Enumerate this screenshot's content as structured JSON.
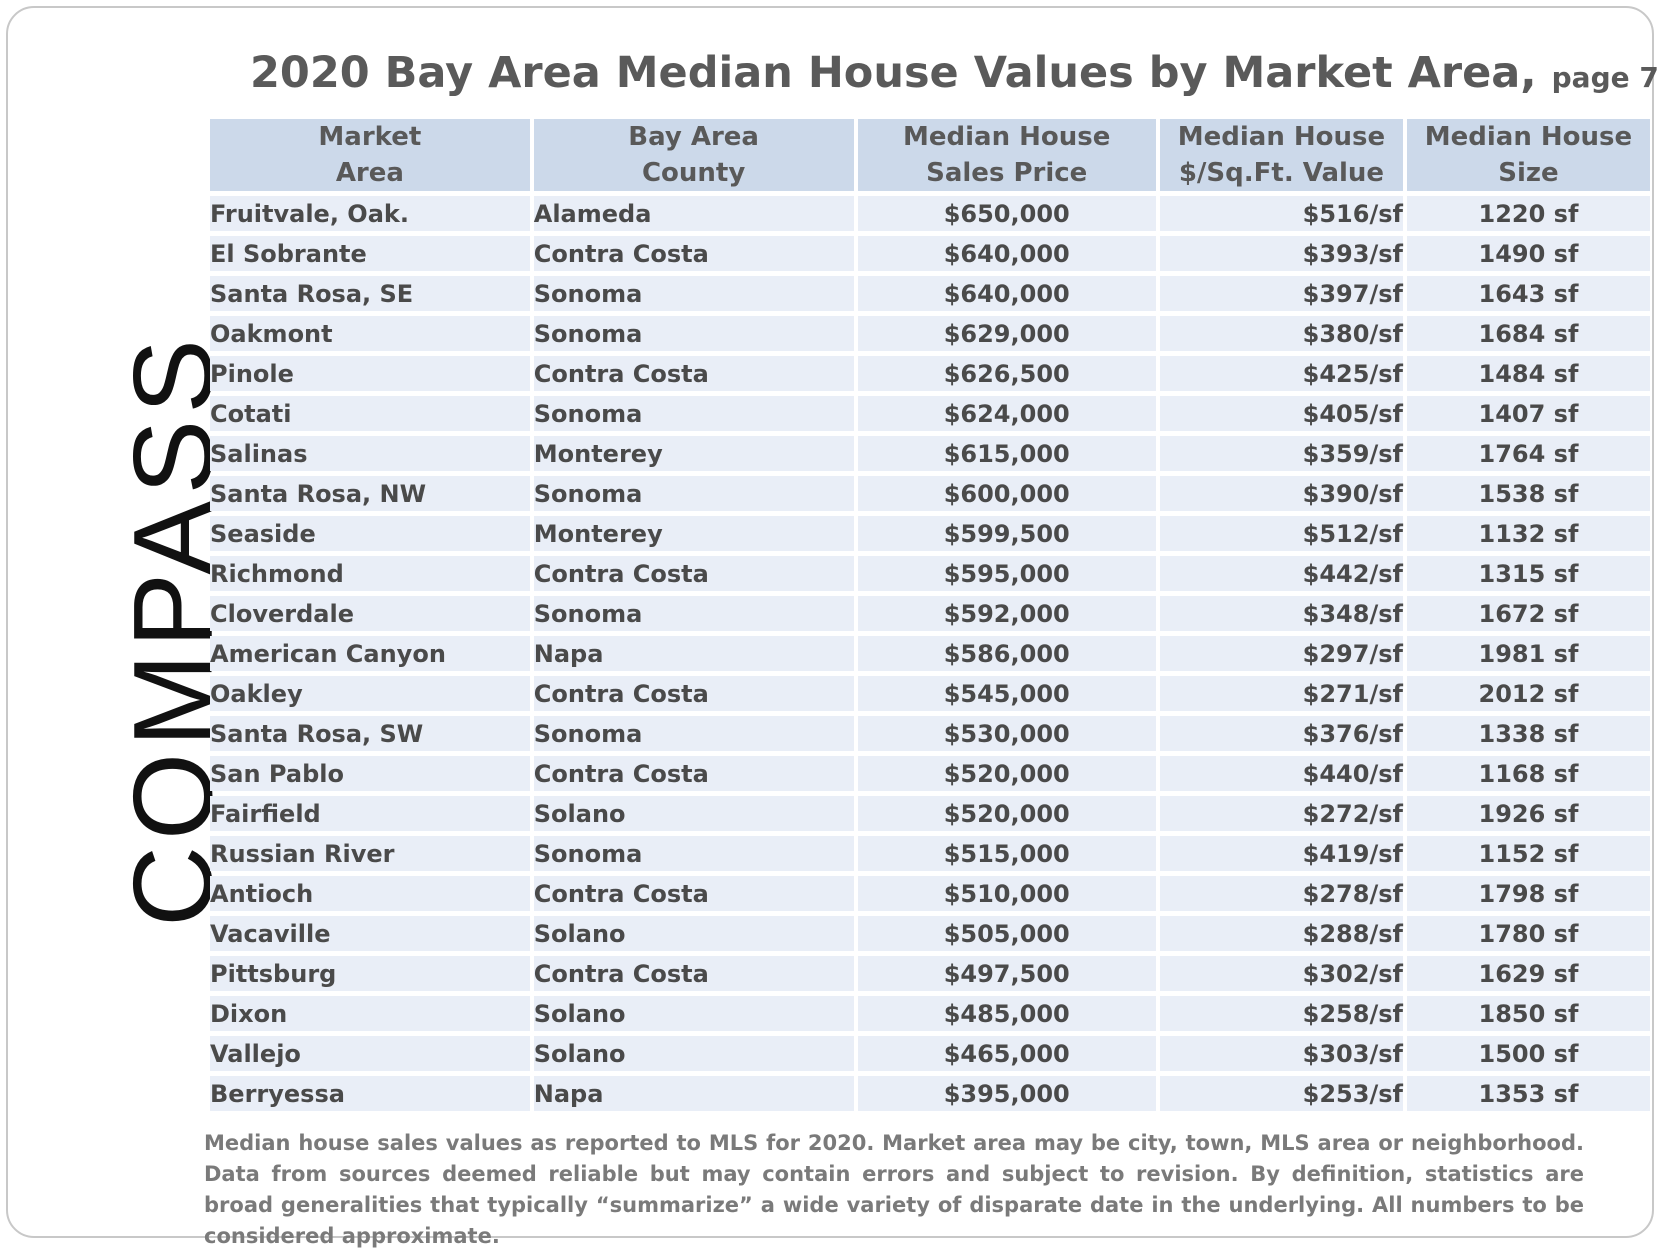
{
  "title": {
    "main": "2020 Bay Area Median House Values by Market Area,",
    "page": "page 7"
  },
  "logo": {
    "text": "COMPASS",
    "icon": "compass-o-slash-icon"
  },
  "table": {
    "headers": [
      {
        "line1": "Market",
        "line2": "Area"
      },
      {
        "line1": "Bay Area",
        "line2": "County"
      },
      {
        "line1": "Median House",
        "line2": "Sales Price"
      },
      {
        "line1": "Median House",
        "line2": "$/Sq.Ft. Value"
      },
      {
        "line1": "Median House",
        "line2": "Size"
      }
    ],
    "rows": [
      [
        "Fruitvale, Oak.",
        "Alameda",
        "$650,000",
        "$516/sf",
        "1220 sf"
      ],
      [
        "El Sobrante",
        "Contra Costa",
        "$640,000",
        "$393/sf",
        "1490 sf"
      ],
      [
        "Santa Rosa, SE",
        "Sonoma",
        "$640,000",
        "$397/sf",
        "1643 sf"
      ],
      [
        "Oakmont",
        "Sonoma",
        "$629,000",
        "$380/sf",
        "1684 sf"
      ],
      [
        "Pinole",
        "Contra Costa",
        "$626,500",
        "$425/sf",
        "1484 sf"
      ],
      [
        "Cotati",
        "Sonoma",
        "$624,000",
        "$405/sf",
        "1407 sf"
      ],
      [
        "Salinas",
        "Monterey",
        "$615,000",
        "$359/sf",
        "1764 sf"
      ],
      [
        "Santa Rosa, NW",
        "Sonoma",
        "$600,000",
        "$390/sf",
        "1538 sf"
      ],
      [
        "Seaside",
        "Monterey",
        "$599,500",
        "$512/sf",
        "1132 sf"
      ],
      [
        "Richmond",
        "Contra Costa",
        "$595,000",
        "$442/sf",
        "1315 sf"
      ],
      [
        "Cloverdale",
        "Sonoma",
        "$592,000",
        "$348/sf",
        "1672 sf"
      ],
      [
        "American Canyon",
        "Napa",
        "$586,000",
        "$297/sf",
        "1981 sf"
      ],
      [
        "Oakley",
        "Contra Costa",
        "$545,000",
        "$271/sf",
        "2012 sf"
      ],
      [
        "Santa Rosa, SW",
        "Sonoma",
        "$530,000",
        "$376/sf",
        "1338 sf"
      ],
      [
        "San Pablo",
        "Contra Costa",
        "$520,000",
        "$440/sf",
        "1168 sf"
      ],
      [
        "Fairfield",
        "Solano",
        "$520,000",
        "$272/sf",
        "1926 sf"
      ],
      [
        "Russian River",
        "Sonoma",
        "$515,000",
        "$419/sf",
        "1152 sf"
      ],
      [
        "Antioch",
        "Contra Costa",
        "$510,000",
        "$278/sf",
        "1798 sf"
      ],
      [
        "Vacaville",
        "Solano",
        "$505,000",
        "$288/sf",
        "1780 sf"
      ],
      [
        "Pittsburg",
        "Contra Costa",
        "$497,500",
        "$302/sf",
        "1629 sf"
      ],
      [
        "Dixon",
        "Solano",
        "$485,000",
        "$258/sf",
        "1850 sf"
      ],
      [
        "Vallejo",
        "Solano",
        "$465,000",
        "$303/sf",
        "1500 sf"
      ],
      [
        "Berryessa",
        "Napa",
        "$395,000",
        "$253/sf",
        "1353 sf"
      ]
    ]
  },
  "footnote": "Median house sales values as reported to MLS for 2020. Market area may be city, town, MLS area or neighborhood. Data from sources deemed reliable but may contain errors and subject to revision. By definition, statistics are broad generalities that typically “summarize” a wide variety of disparate date in the underlying. All numbers to be considered approximate.",
  "colors": {
    "header_bg": "#ccd9ea",
    "row_bg": "#e9eef7",
    "text": "#4a4a4a",
    "title": "#5a5a5a",
    "logo": "#111111"
  }
}
